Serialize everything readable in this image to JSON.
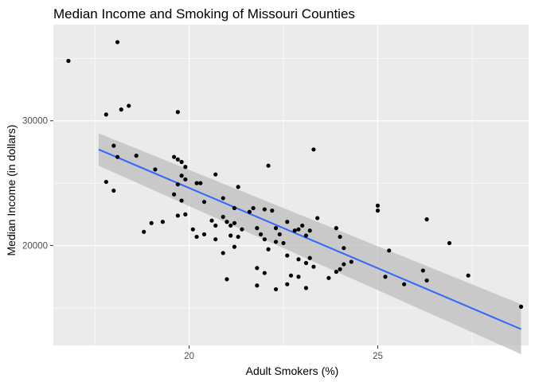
{
  "chart_data": {
    "type": "scatter",
    "title": "Median Income and Smoking of Missouri Counties",
    "xlabel": "Adult Smokers (%)",
    "ylabel": "Median Income (in dollars)",
    "xlim": [
      16.4,
      29.0
    ],
    "ylim": [
      12000,
      37700
    ],
    "xticks": [
      20,
      25
    ],
    "xtick_labels": [
      "20",
      "25"
    ],
    "yticks": [
      20000,
      30000
    ],
    "ytick_labels": [
      "20000",
      "30000"
    ],
    "grid": true,
    "panel_background": "#ebebeb",
    "grid_color": "#ffffff",
    "point_color": "#000000",
    "trend": {
      "method": "lm",
      "x": [
        17.6,
        28.8
      ],
      "y": [
        27700,
        13300
      ],
      "ci_lower": [
        26400,
        11300
      ],
      "ci_upper": [
        29000,
        15300
      ],
      "line_color": "#3366ff",
      "band_color": "#bebebe"
    },
    "points": [
      {
        "x": 16.8,
        "y": 34800
      },
      {
        "x": 18.1,
        "y": 36300
      },
      {
        "x": 17.8,
        "y": 30500
      },
      {
        "x": 18.2,
        "y": 30900
      },
      {
        "x": 18.4,
        "y": 31200
      },
      {
        "x": 19.7,
        "y": 30700
      },
      {
        "x": 18.0,
        "y": 28000
      },
      {
        "x": 18.1,
        "y": 27100
      },
      {
        "x": 18.6,
        "y": 27200
      },
      {
        "x": 17.8,
        "y": 25100
      },
      {
        "x": 18.0,
        "y": 24400
      },
      {
        "x": 19.1,
        "y": 26100
      },
      {
        "x": 19.6,
        "y": 27100
      },
      {
        "x": 19.7,
        "y": 26900
      },
      {
        "x": 19.8,
        "y": 26700
      },
      {
        "x": 19.9,
        "y": 26300
      },
      {
        "x": 19.8,
        "y": 25600
      },
      {
        "x": 19.9,
        "y": 25300
      },
      {
        "x": 19.7,
        "y": 24900
      },
      {
        "x": 20.2,
        "y": 25000
      },
      {
        "x": 20.3,
        "y": 25000
      },
      {
        "x": 20.7,
        "y": 25700
      },
      {
        "x": 21.3,
        "y": 24700
      },
      {
        "x": 19.6,
        "y": 24100
      },
      {
        "x": 19.8,
        "y": 23600
      },
      {
        "x": 20.4,
        "y": 23500
      },
      {
        "x": 20.9,
        "y": 23800
      },
      {
        "x": 21.2,
        "y": 23000
      },
      {
        "x": 21.7,
        "y": 23000
      },
      {
        "x": 22.0,
        "y": 22900
      },
      {
        "x": 22.1,
        "y": 26400
      },
      {
        "x": 23.3,
        "y": 27700
      },
      {
        "x": 19.9,
        "y": 22500
      },
      {
        "x": 19.7,
        "y": 22400
      },
      {
        "x": 20.4,
        "y": 20900
      },
      {
        "x": 20.6,
        "y": 22000
      },
      {
        "x": 20.7,
        "y": 21600
      },
      {
        "x": 20.9,
        "y": 22300
      },
      {
        "x": 21.0,
        "y": 21900
      },
      {
        "x": 21.1,
        "y": 21600
      },
      {
        "x": 21.2,
        "y": 21800
      },
      {
        "x": 21.4,
        "y": 21300
      },
      {
        "x": 21.6,
        "y": 22700
      },
      {
        "x": 21.8,
        "y": 21400
      },
      {
        "x": 21.9,
        "y": 20900
      },
      {
        "x": 22.2,
        "y": 22800
      },
      {
        "x": 22.3,
        "y": 21400
      },
      {
        "x": 22.4,
        "y": 20900
      },
      {
        "x": 22.6,
        "y": 21900
      },
      {
        "x": 22.8,
        "y": 21200
      },
      {
        "x": 22.9,
        "y": 21300
      },
      {
        "x": 23.0,
        "y": 21600
      },
      {
        "x": 23.2,
        "y": 21200
      },
      {
        "x": 23.1,
        "y": 20800
      },
      {
        "x": 23.4,
        "y": 22200
      },
      {
        "x": 23.9,
        "y": 21400
      },
      {
        "x": 19.0,
        "y": 21800
      },
      {
        "x": 19.3,
        "y": 21900
      },
      {
        "x": 18.8,
        "y": 21100
      },
      {
        "x": 20.1,
        "y": 21300
      },
      {
        "x": 20.2,
        "y": 20700
      },
      {
        "x": 20.7,
        "y": 20500
      },
      {
        "x": 21.1,
        "y": 20800
      },
      {
        "x": 21.3,
        "y": 20700
      },
      {
        "x": 22.0,
        "y": 20500
      },
      {
        "x": 22.3,
        "y": 20300
      },
      {
        "x": 22.5,
        "y": 20200
      },
      {
        "x": 22.1,
        "y": 19700
      },
      {
        "x": 21.2,
        "y": 19900
      },
      {
        "x": 20.9,
        "y": 19400
      },
      {
        "x": 22.6,
        "y": 19200
      },
      {
        "x": 22.9,
        "y": 18900
      },
      {
        "x": 23.2,
        "y": 19000
      },
      {
        "x": 23.1,
        "y": 18600
      },
      {
        "x": 23.3,
        "y": 18300
      },
      {
        "x": 24.0,
        "y": 20700
      },
      {
        "x": 24.1,
        "y": 19800
      },
      {
        "x": 24.3,
        "y": 18700
      },
      {
        "x": 24.1,
        "y": 18500
      },
      {
        "x": 24.0,
        "y": 18100
      },
      {
        "x": 23.9,
        "y": 17900
      },
      {
        "x": 23.7,
        "y": 17400
      },
      {
        "x": 21.8,
        "y": 18200
      },
      {
        "x": 22.0,
        "y": 17800
      },
      {
        "x": 22.7,
        "y": 17600
      },
      {
        "x": 22.9,
        "y": 17500
      },
      {
        "x": 22.6,
        "y": 16900
      },
      {
        "x": 22.3,
        "y": 16500
      },
      {
        "x": 21.8,
        "y": 16800
      },
      {
        "x": 23.1,
        "y": 16600
      },
      {
        "x": 21.0,
        "y": 17300
      },
      {
        "x": 25.0,
        "y": 23200
      },
      {
        "x": 25.0,
        "y": 22800
      },
      {
        "x": 26.2,
        "y": 18000
      },
      {
        "x": 26.3,
        "y": 22100
      },
      {
        "x": 25.3,
        "y": 19600
      },
      {
        "x": 25.2,
        "y": 17500
      },
      {
        "x": 25.7,
        "y": 16900
      },
      {
        "x": 26.3,
        "y": 17200
      },
      {
        "x": 26.9,
        "y": 20200
      },
      {
        "x": 27.4,
        "y": 17600
      },
      {
        "x": 28.8,
        "y": 15100
      }
    ]
  }
}
